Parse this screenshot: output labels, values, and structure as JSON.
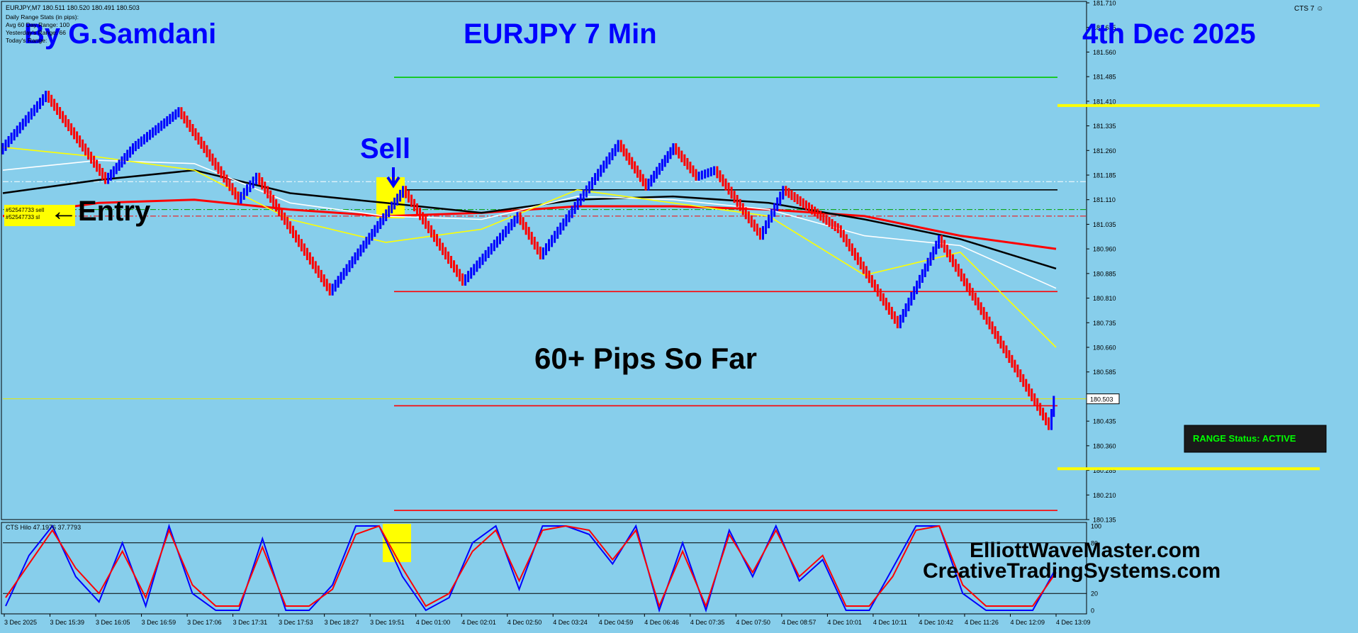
{
  "header": {
    "symbol_line": "EURJPY,M7  180.511 180.520 180.491 180.503",
    "stats": [
      "Daily Range Stats (in pips):",
      "Avg 60 Day Range: 100",
      "Yesterday's Range: 66",
      "Today's Range:"
    ],
    "terminal_label": "CTS 7 ☺"
  },
  "overlay": {
    "author": "By G.Samdani",
    "title": "EURJPY 7 Min",
    "date": "4th Dec 2025",
    "sell_label": "Sell",
    "entry_label": "←Entry",
    "order_tags": [
      "#52547733 sell",
      "#52547733 sl"
    ],
    "pips_text": "60+ Pips So Far",
    "range_status": "RANGE Status: ACTIVE",
    "site1": "ElliottWaveMaster.com",
    "site2": "CreativeTradingSystems.com"
  },
  "colors": {
    "background": "#87ceeb",
    "bull": "#0000ff",
    "bear": "#ff0000",
    "level_green": "#00c800",
    "level_yellow": "#ffff00",
    "status_text": "#00ff00",
    "status_bg": "#1a1a1a",
    "title_blue": "#0000ff"
  },
  "chart_data": [
    {
      "type": "candlestick",
      "symbol": "EURJPY",
      "timeframe": "M7",
      "ylim": [
        180.135,
        181.71
      ],
      "y_ticks": [
        181.71,
        181.635,
        181.56,
        181.485,
        181.41,
        181.335,
        181.26,
        181.185,
        181.11,
        181.035,
        180.96,
        180.885,
        180.81,
        180.735,
        180.66,
        180.585,
        180.51,
        180.435,
        180.36,
        180.285,
        180.21,
        180.135
      ],
      "current_price": 180.503,
      "current_price_label": "180.503",
      "x_labels": [
        "3 Dec 2025",
        "3 Dec 15:39",
        "3 Dec 16:05",
        "3 Dec 16:59",
        "3 Dec 17:06",
        "3 Dec 17:31",
        "3 Dec 17:53",
        "3 Dec 18:27",
        "3 Dec 19:51",
        "4 Dec 01:00",
        "4 Dec 02:01",
        "4 Dec 02:50",
        "4 Dec 03:24",
        "4 Dec 04:59",
        "4 Dec 06:46",
        "4 Dec 07:35",
        "4 Dec 07:50",
        "4 Dec 08:57",
        "4 Dec 10:01",
        "4 Dec 10:11",
        "4 Dec 10:42",
        "4 Dec 11:26",
        "4 Dec 12:09",
        "4 Dec 13:09"
      ],
      "price_path": [
        {
          "x": 0,
          "y": 181.26
        },
        {
          "x": 1,
          "y": 181.43
        },
        {
          "x": 2.3,
          "y": 181.17
        },
        {
          "x": 2.9,
          "y": 181.27
        },
        {
          "x": 3.9,
          "y": 181.38
        },
        {
          "x": 5.2,
          "y": 181.11
        },
        {
          "x": 5.6,
          "y": 181.18
        },
        {
          "x": 7.2,
          "y": 180.83
        },
        {
          "x": 8.8,
          "y": 181.14
        },
        {
          "x": 10.1,
          "y": 180.86
        },
        {
          "x": 11.3,
          "y": 181.06
        },
        {
          "x": 11.8,
          "y": 180.94
        },
        {
          "x": 13.5,
          "y": 181.28
        },
        {
          "x": 14.1,
          "y": 181.15
        },
        {
          "x": 14.7,
          "y": 181.27
        },
        {
          "x": 15.2,
          "y": 181.18
        },
        {
          "x": 15.6,
          "y": 181.2
        },
        {
          "x": 16.6,
          "y": 181.0
        },
        {
          "x": 17.1,
          "y": 181.14
        },
        {
          "x": 18.3,
          "y": 181.02
        },
        {
          "x": 19.6,
          "y": 180.73
        },
        {
          "x": 20.5,
          "y": 180.99
        },
        {
          "x": 22.9,
          "y": 180.42
        },
        {
          "x": 23.0,
          "y": 180.5
        }
      ],
      "indicator_lines": [
        {
          "color": "#ff0000",
          "values": [
            181.06,
            181.1,
            181.11,
            181.08,
            181.06,
            181.07,
            181.09,
            181.09,
            181.08,
            181.06,
            181.0,
            180.96
          ]
        },
        {
          "color": "#000000",
          "values": [
            181.13,
            181.17,
            181.2,
            181.13,
            181.1,
            181.07,
            181.11,
            181.12,
            181.1,
            181.05,
            180.99,
            180.9
          ]
        },
        {
          "color": "#ffffff",
          "values": [
            181.2,
            181.23,
            181.22,
            181.1,
            181.06,
            181.05,
            181.12,
            181.11,
            181.08,
            181.0,
            180.97,
            180.84
          ]
        },
        {
          "color": "#ffff00",
          "values": [
            181.27,
            181.24,
            181.2,
            181.05,
            180.98,
            181.02,
            181.14,
            181.1,
            181.06,
            180.88,
            180.95,
            180.66
          ]
        }
      ],
      "levels": [
        {
          "price": 181.483,
          "color": "#00c800"
        },
        {
          "price": 181.14,
          "color": "#000000"
        },
        {
          "price": 180.83,
          "color": "#ff0000"
        },
        {
          "price": 180.482,
          "color": "#ff0000"
        },
        {
          "price": 180.163,
          "color": "#ff0000"
        },
        {
          "price": 181.397,
          "color": "#ffff00"
        },
        {
          "price": 180.29,
          "color": "#ffff00"
        },
        {
          "price": 181.08,
          "color": "#00a000",
          "dashed": true
        },
        {
          "price": 181.06,
          "color": "#ff0000",
          "dashed": true
        },
        {
          "price": 181.165,
          "color": "#ffffff",
          "dashed": true
        }
      ]
    },
    {
      "type": "line",
      "title": "CTS Hilo 47.1976 37.7793",
      "ylim": [
        0,
        100
      ],
      "y_ticks": [
        100,
        80,
        20,
        0
      ],
      "levels": [
        80,
        20
      ],
      "series": [
        {
          "color": "#0000ff",
          "values": [
            5,
            65,
            100,
            40,
            10,
            80,
            5,
            100,
            20,
            0,
            0,
            85,
            0,
            0,
            30,
            100,
            100,
            40,
            0,
            15,
            80,
            100,
            25,
            100,
            100,
            90,
            55,
            100,
            0,
            80,
            0,
            95,
            40,
            100,
            35,
            60,
            0,
            0,
            50,
            100,
            100,
            20,
            0,
            0,
            0,
            50
          ]
        },
        {
          "color": "#ff0000",
          "values": [
            15,
            55,
            95,
            50,
            20,
            70,
            15,
            95,
            30,
            5,
            5,
            75,
            5,
            5,
            25,
            90,
            100,
            50,
            5,
            20,
            70,
            95,
            35,
            95,
            100,
            95,
            60,
            95,
            5,
            70,
            5,
            90,
            45,
            95,
            40,
            65,
            5,
            5,
            40,
            95,
            100,
            30,
            5,
            5,
            5,
            45
          ]
        }
      ]
    }
  ]
}
